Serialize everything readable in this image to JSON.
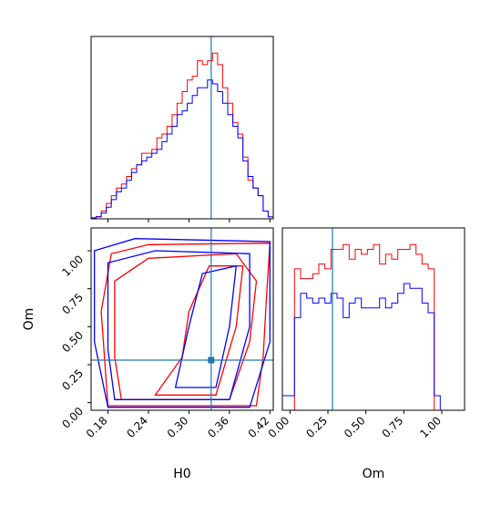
{
  "chart_data": [
    {
      "type": "histogram",
      "panel": "H0 marginal",
      "x_bin_edges": [
        0.155,
        0.1625,
        0.17,
        0.1775,
        0.185,
        0.1925,
        0.2,
        0.2075,
        0.215,
        0.2225,
        0.23,
        0.2375,
        0.245,
        0.2525,
        0.26,
        0.2675,
        0.275,
        0.2825,
        0.29,
        0.2975,
        0.305,
        0.3125,
        0.32,
        0.3275,
        0.335,
        0.3425,
        0.35,
        0.3575,
        0.365,
        0.3725,
        0.38,
        0.3875,
        0.395,
        0.4025,
        0.41,
        0.4175,
        0.425
      ],
      "series": [
        {
          "color": "#ff0000",
          "values": [
            0.3,
            0.6,
            2,
            4,
            6,
            8,
            9,
            11,
            13,
            14,
            17,
            17,
            18,
            21,
            22,
            24,
            27,
            30,
            33,
            36,
            37,
            41,
            40,
            41,
            43,
            40,
            34,
            30,
            25,
            22,
            16,
            10,
            8,
            6,
            2,
            0.5
          ]
        },
        {
          "color": "#0000ff",
          "values": [
            0.2,
            0.5,
            1.5,
            3,
            5,
            7,
            8,
            10,
            12,
            14,
            15,
            16,
            17,
            18,
            20,
            22,
            24,
            27,
            28,
            30,
            32,
            34,
            34,
            36,
            35,
            33,
            30,
            27,
            24,
            21,
            15,
            11,
            8,
            6,
            2,
            0.5
          ]
        }
      ],
      "vline": 0.333,
      "xlim": [
        0.155,
        0.425
      ],
      "y_ticks_shown": false,
      "x_ticklabels_shown": false
    },
    {
      "type": "contour",
      "panel": "H0 vs Om",
      "xlabel": "H0",
      "ylabel": "Om",
      "xlim": [
        0.155,
        0.425
      ],
      "ylim": [
        -0.05,
        1.15
      ],
      "x_ticks": [
        0.18,
        0.24,
        0.3,
        0.36,
        0.42
      ],
      "x_ticklabels": [
        "0.18",
        "0.24",
        "0.30",
        "0.36",
        "0.42"
      ],
      "y_ticks": [
        0.0,
        0.25,
        0.5,
        0.75,
        1.0
      ],
      "y_ticklabels": [
        "0.00",
        "0.25",
        "0.50",
        "0.75",
        "1.00"
      ],
      "series": [
        {
          "color": "#ff0000",
          "contours": [
            [
              [
                0.18,
                -0.02
              ],
              [
                0.4,
                -0.02
              ],
              [
                0.41,
                0.3
              ],
              [
                0.415,
                0.7
              ],
              [
                0.42,
                1.05
              ],
              [
                0.24,
                1.04
              ],
              [
                0.185,
                0.98
              ],
              [
                0.17,
                0.6
              ],
              [
                0.18,
                -0.02
              ]
            ],
            [
              [
                0.2,
                0.02
              ],
              [
                0.36,
                0.02
              ],
              [
                0.39,
                0.4
              ],
              [
                0.4,
                0.8
              ],
              [
                0.37,
                0.98
              ],
              [
                0.24,
                0.95
              ],
              [
                0.19,
                0.8
              ],
              [
                0.19,
                0.3
              ],
              [
                0.2,
                0.02
              ]
            ],
            [
              [
                0.25,
                0.05
              ],
              [
                0.34,
                0.05
              ],
              [
                0.37,
                0.5
              ],
              [
                0.38,
                0.9
              ],
              [
                0.33,
                0.9
              ],
              [
                0.3,
                0.6
              ],
              [
                0.29,
                0.3
              ],
              [
                0.25,
                0.05
              ]
            ]
          ]
        },
        {
          "color": "#0000ff",
          "contours": [
            [
              [
                0.18,
                -0.03
              ],
              [
                0.39,
                -0.03
              ],
              [
                0.42,
                0.4
              ],
              [
                0.42,
                1.06
              ],
              [
                0.22,
                1.08
              ],
              [
                0.16,
                1.0
              ],
              [
                0.16,
                0.4
              ],
              [
                0.18,
                -0.03
              ]
            ],
            [
              [
                0.19,
                0.02
              ],
              [
                0.36,
                0.02
              ],
              [
                0.39,
                0.5
              ],
              [
                0.39,
                0.98
              ],
              [
                0.25,
                1.0
              ],
              [
                0.18,
                0.92
              ],
              [
                0.18,
                0.35
              ],
              [
                0.19,
                0.02
              ]
            ],
            [
              [
                0.28,
                0.1
              ],
              [
                0.34,
                0.1
              ],
              [
                0.36,
                0.5
              ],
              [
                0.37,
                0.9
              ],
              [
                0.32,
                0.85
              ],
              [
                0.3,
                0.5
              ],
              [
                0.28,
                0.1
              ]
            ]
          ]
        }
      ],
      "crosshair": {
        "x": 0.333,
        "y": 0.28
      }
    },
    {
      "type": "histogram",
      "panel": "Om marginal",
      "xlabel": "Om",
      "xlim": [
        -0.05,
        1.15
      ],
      "x_ticks": [
        0.0,
        0.25,
        0.5,
        0.75,
        1.0
      ],
      "x_ticklabels": [
        "0.00",
        "0.25",
        "0.50",
        "0.75",
        "1.00"
      ],
      "x_bin_edges": [
        -0.05,
        -0.01,
        0.03,
        0.07,
        0.11,
        0.15,
        0.19,
        0.23,
        0.27,
        0.31,
        0.35,
        0.39,
        0.43,
        0.47,
        0.51,
        0.55,
        0.59,
        0.63,
        0.67,
        0.71,
        0.75,
        0.79,
        0.83,
        0.87,
        0.91,
        0.95,
        0.99,
        1.03,
        1.07,
        1.11,
        1.15
      ],
      "series": [
        {
          "color": "#ff0000",
          "values": [
            0,
            0,
            29,
            27,
            27,
            28,
            30,
            29,
            33,
            33,
            34,
            31,
            33,
            32,
            33,
            34,
            30,
            32,
            31,
            33,
            33,
            34,
            32,
            30,
            29,
            0,
            0,
            0,
            0,
            0
          ]
        },
        {
          "color": "#0000ff",
          "values": [
            3,
            3,
            19,
            24,
            23,
            22,
            23,
            22,
            24,
            23,
            19,
            22,
            23,
            21,
            21,
            21,
            23,
            21,
            22,
            24,
            26,
            25,
            25,
            22,
            20,
            3,
            0,
            0,
            0,
            0
          ]
        }
      ],
      "vline": 0.28,
      "y_ticks_shown": false
    }
  ]
}
